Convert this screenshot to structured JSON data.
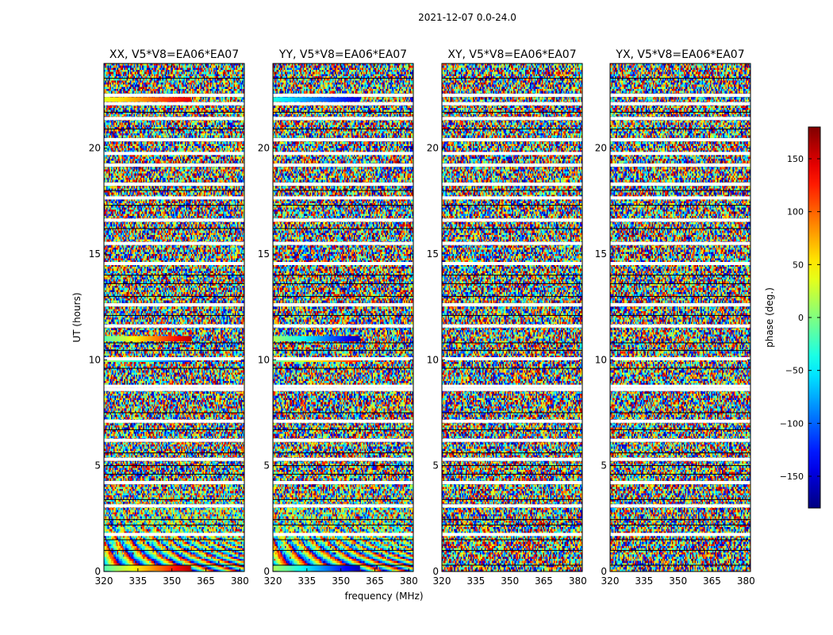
{
  "figure": {
    "suptitle": "2021-12-07 0.0-24.0"
  },
  "chart_data": {
    "type": "heatmap",
    "xlabel": "frequency (MHz)",
    "ylabel": "UT (hours)",
    "xlim": [
      320,
      382
    ],
    "ylim": [
      0,
      24
    ],
    "x_ticks": [
      320,
      335,
      350,
      365,
      380
    ],
    "y_ticks": [
      0,
      5,
      10,
      15,
      20
    ],
    "panels": [
      {
        "title": "XX, V5*V8=EA06*EA07",
        "pol": "XX"
      },
      {
        "title": "YY, V5*V8=EA06*EA07",
        "pol": "YY"
      },
      {
        "title": "XY, V5*V8=EA06*EA07",
        "pol": "XY"
      },
      {
        "title": "YX, V5*V8=EA06*EA07",
        "pol": "YX"
      }
    ],
    "colorbar": {
      "label": "phase (deg.)",
      "range": [
        -180,
        180
      ],
      "ticks": [
        150,
        100,
        50,
        0,
        -50,
        -100,
        -150
      ],
      "colormap": "jet"
    }
  }
}
